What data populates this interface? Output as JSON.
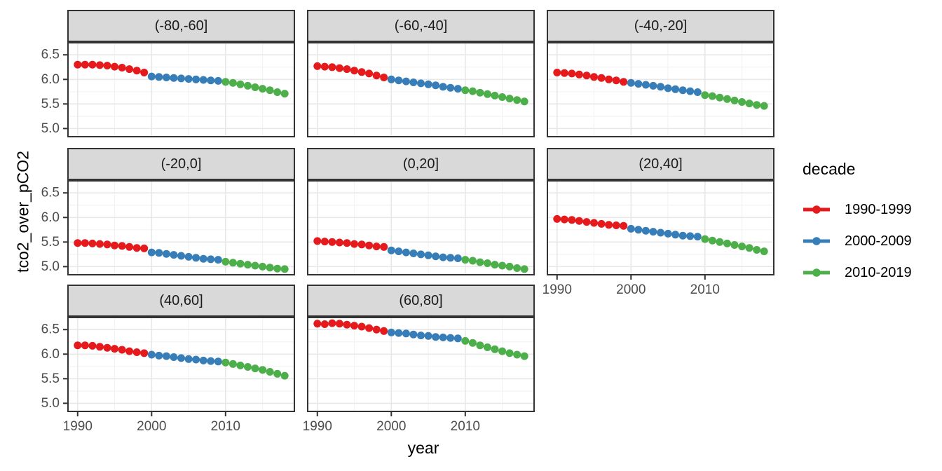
{
  "figure": {
    "y_axis_title": "tco2_over_pCO2",
    "x_axis_title": "year"
  },
  "legend": {
    "title": "decade"
  },
  "colors": {
    "strip_fill": "#D9D9D9",
    "panel_background": "#FFFFFF",
    "panel_border": "#333333",
    "grid_major": "#E8E8E8",
    "grid_minor": "#F3F3F3",
    "tick_mark": "#333333",
    "tick_label": "#4D4D4D",
    "decade_red": "#E41A1C",
    "decade_blue": "#377EB8",
    "decade_green": "#4DAF4A"
  },
  "chart_data": {
    "type": "scatter",
    "title": "",
    "xlabel": "year",
    "ylabel": "tco2_over_pCO2",
    "grid": true,
    "legend_position": "right",
    "xlim": [
      1988.6,
      2019.4
    ],
    "ylim": [
      4.82,
      6.76
    ],
    "x_ticks": [
      1990,
      2000,
      2010
    ],
    "x_tick_labels": [
      "1990",
      "2000",
      "2010"
    ],
    "y_ticks": [
      5.0,
      5.5,
      6.0,
      6.5
    ],
    "y_tick_labels": [
      "5.0",
      "5.5",
      "6.0",
      "6.5"
    ],
    "x_minor_ticks": [
      1995,
      2005,
      2015
    ],
    "y_minor_ticks": [
      5.25,
      5.75,
      6.25,
      6.75
    ],
    "years": [
      1990,
      1991,
      1992,
      1993,
      1994,
      1995,
      1996,
      1997,
      1998,
      1999,
      2000,
      2001,
      2002,
      2003,
      2004,
      2005,
      2006,
      2007,
      2008,
      2009,
      2010,
      2011,
      2012,
      2013,
      2014,
      2015,
      2016,
      2017,
      2018
    ],
    "decades": [
      {
        "label": "1990-1999",
        "color": "#E41A1C",
        "start_year": 1990,
        "end_year": 1999
      },
      {
        "label": "2000-2009",
        "color": "#377EB8",
        "start_year": 2000,
        "end_year": 2009
      },
      {
        "label": "2010-2019",
        "color": "#4DAF4A",
        "start_year": 2010,
        "end_year": 2019
      }
    ],
    "facets": [
      {
        "label": "(-80,-60]",
        "values": [
          6.3,
          6.3,
          6.3,
          6.29,
          6.28,
          6.26,
          6.24,
          6.21,
          6.18,
          6.14,
          6.06,
          6.05,
          6.04,
          6.03,
          6.02,
          6.01,
          6.0,
          5.99,
          5.98,
          5.97,
          5.95,
          5.93,
          5.9,
          5.87,
          5.84,
          5.81,
          5.78,
          5.74,
          5.71
        ]
      },
      {
        "label": "(-60,-40]",
        "values": [
          6.27,
          6.26,
          6.25,
          6.23,
          6.21,
          6.18,
          6.15,
          6.12,
          6.08,
          6.04,
          6.0,
          5.98,
          5.96,
          5.94,
          5.92,
          5.9,
          5.88,
          5.85,
          5.83,
          5.81,
          5.78,
          5.76,
          5.73,
          5.7,
          5.67,
          5.64,
          5.61,
          5.58,
          5.55
        ]
      },
      {
        "label": "(-40,-20]",
        "values": [
          6.14,
          6.13,
          6.12,
          6.1,
          6.08,
          6.05,
          6.03,
          6.0,
          5.98,
          5.95,
          5.93,
          5.91,
          5.89,
          5.87,
          5.85,
          5.82,
          5.8,
          5.78,
          5.76,
          5.74,
          5.68,
          5.66,
          5.63,
          5.6,
          5.57,
          5.54,
          5.51,
          5.48,
          5.46
        ]
      },
      {
        "label": "(-20,0]",
        "values": [
          5.48,
          5.48,
          5.47,
          5.46,
          5.45,
          5.43,
          5.42,
          5.4,
          5.38,
          5.37,
          5.29,
          5.28,
          5.26,
          5.24,
          5.22,
          5.2,
          5.18,
          5.16,
          5.15,
          5.14,
          5.1,
          5.08,
          5.06,
          5.04,
          5.02,
          5.0,
          4.98,
          4.96,
          4.95
        ]
      },
      {
        "label": "(0,20]",
        "values": [
          5.52,
          5.51,
          5.5,
          5.49,
          5.48,
          5.46,
          5.45,
          5.43,
          5.41,
          5.4,
          5.33,
          5.31,
          5.29,
          5.27,
          5.25,
          5.23,
          5.21,
          5.19,
          5.18,
          5.17,
          5.14,
          5.12,
          5.09,
          5.07,
          5.04,
          5.02,
          5.0,
          4.97,
          4.95
        ]
      },
      {
        "label": "(20,40]",
        "values": [
          5.97,
          5.96,
          5.95,
          5.93,
          5.91,
          5.89,
          5.87,
          5.85,
          5.84,
          5.83,
          5.77,
          5.75,
          5.73,
          5.71,
          5.69,
          5.67,
          5.65,
          5.63,
          5.62,
          5.61,
          5.56,
          5.53,
          5.5,
          5.47,
          5.44,
          5.41,
          5.38,
          5.34,
          5.31
        ]
      },
      {
        "label": "(40,60]",
        "values": [
          6.18,
          6.18,
          6.17,
          6.15,
          6.13,
          6.11,
          6.09,
          6.06,
          6.04,
          6.02,
          5.99,
          5.97,
          5.96,
          5.94,
          5.92,
          5.9,
          5.89,
          5.87,
          5.86,
          5.85,
          5.83,
          5.8,
          5.77,
          5.74,
          5.71,
          5.68,
          5.64,
          5.6,
          5.56
        ]
      },
      {
        "label": "(60,80]",
        "values": [
          6.62,
          6.61,
          6.63,
          6.62,
          6.6,
          6.58,
          6.56,
          6.53,
          6.5,
          6.47,
          6.44,
          6.43,
          6.42,
          6.4,
          6.38,
          6.37,
          6.35,
          6.34,
          6.33,
          6.32,
          6.27,
          6.23,
          6.18,
          6.14,
          6.1,
          6.06,
          6.02,
          5.99,
          5.96
        ]
      }
    ]
  }
}
